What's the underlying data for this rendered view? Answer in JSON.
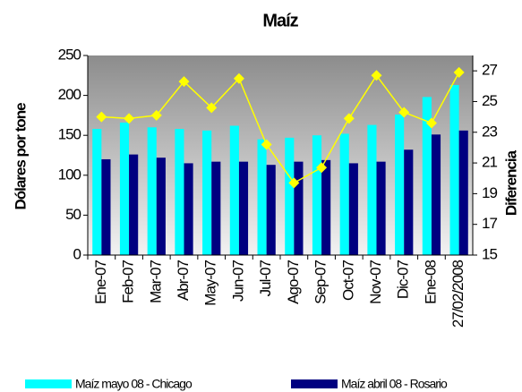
{
  "chart_data": {
    "type": "bar-line",
    "title": "Maíz",
    "ylabel": "Dólares por tone",
    "y2label": "Diferencia",
    "categories": [
      "Ene-07",
      "Feb-07",
      "Mar-07",
      "Abr-07",
      "May-07",
      "Jun-07",
      "Jul-07",
      "Ago-07",
      "Sep-07",
      "Oct-07",
      "Nov-07",
      "Dic-07",
      "Ene-08",
      "27/02/2008"
    ],
    "series": [
      {
        "name": "Maíz mayo 08 - Chicago",
        "color": "#00ffff",
        "values": [
          158,
          166,
          160,
          158,
          156,
          162,
          145,
          147,
          150,
          152,
          163,
          176,
          198,
          213
        ]
      },
      {
        "name": "Maíz abril 08 - Rosario",
        "color": "#000080",
        "values": [
          120,
          126,
          122,
          115,
          117,
          117,
          113,
          117,
          119,
          115,
          117,
          132,
          151,
          156
        ]
      },
      {
        "color": "#ffff00",
        "axis": "y2",
        "values": [
          24.0,
          23.9,
          24.1,
          26.3,
          24.6,
          26.5,
          22.2,
          19.7,
          20.7,
          23.9,
          26.7,
          24.3,
          23.6,
          26.9
        ]
      }
    ],
    "ylim": [
      0,
      250
    ],
    "yticks": [
      0,
      50,
      100,
      150,
      200,
      250
    ],
    "y2lim": [
      15,
      28
    ],
    "y2ticks": [
      15,
      17,
      19,
      21,
      23,
      25,
      27
    ]
  }
}
